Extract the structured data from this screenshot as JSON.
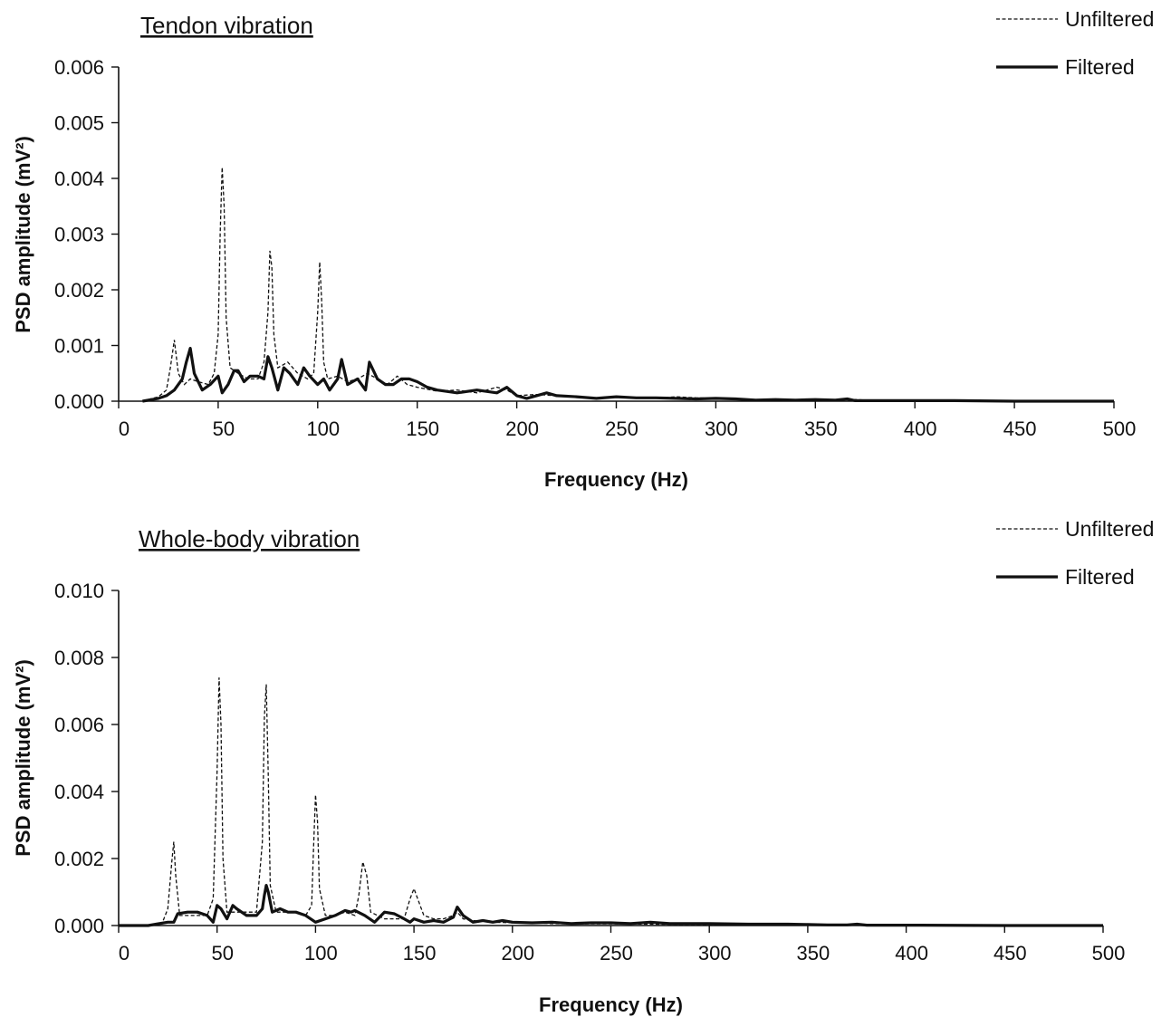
{
  "chart_data": [
    {
      "type": "line",
      "title": "Tendon vibration",
      "xlabel": "Frequency (Hz)",
      "ylabel": "PSD amplitude (mV²)",
      "xlim": [
        0,
        500
      ],
      "ylim": [
        0,
        0.006
      ],
      "x_ticks": [
        "0",
        "50",
        "100",
        "150",
        "200",
        "250",
        "300",
        "350",
        "400",
        "450",
        "500"
      ],
      "y_ticks": [
        "0.000",
        "0.001",
        "0.002",
        "0.003",
        "0.004",
        "0.005",
        "0.006"
      ],
      "grid": false,
      "legend_placement": "top-right",
      "series": [
        {
          "name": "Unfiltered",
          "style": "dashed",
          "x": [
            12,
            20,
            24,
            26,
            28,
            30,
            33,
            36,
            40,
            45,
            48,
            50,
            51,
            52,
            53,
            54,
            56,
            60,
            65,
            70,
            73,
            75,
            76,
            77,
            78,
            80,
            85,
            90,
            95,
            98,
            100,
            101,
            102,
            103,
            105,
            110,
            115,
            120,
            125,
            130,
            135,
            140,
            145,
            150,
            160,
            170,
            180,
            190,
            195,
            200,
            210,
            220,
            230,
            240,
            250,
            260,
            270,
            280,
            290,
            300,
            310,
            320,
            330,
            340,
            350,
            360,
            370,
            380,
            400,
            420,
            450,
            480,
            500
          ],
          "y": [
            0,
            8e-05,
            0.0002,
            0.0006,
            0.0011,
            0.0005,
            0.0003,
            0.0004,
            0.00035,
            0.0003,
            0.0005,
            0.0012,
            0.003,
            0.0042,
            0.0035,
            0.0015,
            0.0006,
            0.0005,
            0.0004,
            0.0004,
            0.0007,
            0.0016,
            0.0027,
            0.0024,
            0.0012,
            0.0006,
            0.0007,
            0.0005,
            0.0004,
            0.0005,
            0.0016,
            0.0025,
            0.0018,
            0.0007,
            0.0004,
            0.00045,
            0.00035,
            0.0004,
            0.0005,
            0.0004,
            0.0003,
            0.00045,
            0.0003,
            0.00025,
            0.00018,
            0.0002,
            0.00015,
            0.00025,
            0.0002,
            0.0001,
            0.00012,
            0.0001,
            8e-05,
            6e-05,
            8e-05,
            7e-05,
            5e-05,
            8e-05,
            6e-05,
            5e-05,
            4e-05,
            3e-05,
            3e-05,
            3e-05,
            2e-05,
            2e-05,
            3e-05,
            1e-05,
            1e-05,
            1e-05,
            1e-05,
            0,
            0
          ]
        },
        {
          "name": "Filtered",
          "style": "solid",
          "x": [
            12,
            20,
            24,
            28,
            32,
            34,
            36,
            38,
            42,
            46,
            50,
            52,
            55,
            58,
            60,
            63,
            66,
            70,
            73,
            75,
            77,
            80,
            83,
            86,
            90,
            93,
            96,
            100,
            103,
            106,
            110,
            112,
            115,
            120,
            124,
            126,
            130,
            134,
            138,
            142,
            146,
            150,
            155,
            160,
            170,
            180,
            190,
            195,
            200,
            205,
            210,
            215,
            220,
            230,
            240,
            250,
            260,
            270,
            280,
            290,
            300,
            310,
            320,
            330,
            340,
            350,
            360,
            366,
            370,
            380,
            400,
            420,
            450,
            480,
            500
          ],
          "y": [
            0,
            5e-05,
            0.0001,
            0.0002,
            0.0004,
            0.0007,
            0.00095,
            0.0005,
            0.0002,
            0.0003,
            0.00045,
            0.00015,
            0.0003,
            0.00055,
            0.00055,
            0.00035,
            0.00045,
            0.00045,
            0.0004,
            0.0008,
            0.0006,
            0.0002,
            0.0006,
            0.0005,
            0.0003,
            0.0006,
            0.00045,
            0.0003,
            0.0004,
            0.0002,
            0.0004,
            0.00075,
            0.0003,
            0.0004,
            0.0002,
            0.0007,
            0.0004,
            0.0003,
            0.0003,
            0.0004,
            0.0004,
            0.00035,
            0.00025,
            0.0002,
            0.00015,
            0.0002,
            0.00015,
            0.00025,
            0.0001,
            5e-05,
            0.0001,
            0.00015,
            0.0001,
            8e-05,
            5e-05,
            8e-05,
            6e-05,
            6e-05,
            5e-05,
            4e-05,
            5e-05,
            4e-05,
            2e-05,
            3e-05,
            2e-05,
            3e-05,
            2e-05,
            4e-05,
            1e-05,
            1e-05,
            1e-05,
            1e-05,
            0,
            0,
            0
          ]
        }
      ]
    },
    {
      "type": "line",
      "title": "Whole-body vibration",
      "xlabel": "Frequency (Hz)",
      "ylabel": "PSD amplitude (mV²)",
      "xlim": [
        0,
        500
      ],
      "ylim": [
        0,
        0.01
      ],
      "x_ticks": [
        "0",
        "50",
        "100",
        "150",
        "200",
        "250",
        "300",
        "350",
        "400",
        "450",
        "500"
      ],
      "y_ticks": [
        "0.000",
        "0.002",
        "0.004",
        "0.006",
        "0.008",
        "0.010"
      ],
      "grid": false,
      "legend_placement": "top-right",
      "series": [
        {
          "name": "Unfiltered",
          "style": "dashed",
          "x": [
            0,
            15,
            22,
            25,
            27,
            28,
            29,
            31,
            35,
            40,
            45,
            48,
            50,
            51,
            52,
            53,
            55,
            60,
            65,
            70,
            73,
            74,
            75,
            76,
            77,
            80,
            85,
            90,
            95,
            98,
            99,
            100,
            101,
            102,
            105,
            110,
            115,
            120,
            122,
            124,
            126,
            128,
            135,
            145,
            148,
            150,
            155,
            160,
            165,
            170,
            172,
            175,
            180,
            190,
            200,
            210,
            220,
            230,
            250,
            270,
            300,
            330,
            350,
            360,
            370,
            380,
            400,
            450,
            500
          ],
          "y": [
            0,
            0,
            5e-05,
            0.0005,
            0.0019,
            0.0025,
            0.0015,
            0.0003,
            0.0003,
            0.0003,
            0.0003,
            0.0008,
            0.0046,
            0.0074,
            0.006,
            0.002,
            0.0004,
            0.0004,
            0.0004,
            0.0004,
            0.0025,
            0.0062,
            0.0072,
            0.0045,
            0.0012,
            0.0004,
            0.0004,
            0.0004,
            0.0003,
            0.0006,
            0.0023,
            0.0039,
            0.0031,
            0.0011,
            0.0003,
            0.0003,
            0.0004,
            0.0003,
            0.0009,
            0.0019,
            0.0015,
            0.0004,
            0.0002,
            0.0002,
            0.0008,
            0.0011,
            0.0003,
            0.0002,
            0.0002,
            0.0003,
            0.0004,
            0.0002,
            0.00015,
            0.0001,
            8e-05,
            8e-05,
            6e-05,
            5e-05,
            5e-05,
            4e-05,
            3e-05,
            2e-05,
            2e-05,
            1e-05,
            1e-05,
            1e-05,
            1e-05,
            0,
            0
          ]
        },
        {
          "name": "Filtered",
          "style": "solid",
          "x": [
            0,
            15,
            20,
            25,
            28,
            30,
            35,
            40,
            45,
            48,
            50,
            52,
            55,
            58,
            60,
            65,
            70,
            73,
            74,
            75,
            76,
            78,
            82,
            86,
            90,
            95,
            100,
            105,
            110,
            115,
            118,
            120,
            125,
            130,
            135,
            140,
            145,
            148,
            150,
            155,
            160,
            165,
            170,
            172,
            175,
            180,
            185,
            190,
            195,
            200,
            210,
            220,
            230,
            240,
            250,
            260,
            270,
            280,
            300,
            320,
            340,
            350,
            360,
            370,
            375,
            380,
            400,
            450,
            500
          ],
          "y": [
            0,
            0,
            5e-05,
            0.0001,
            0.0001,
            0.00035,
            0.0004,
            0.0004,
            0.0003,
            0.0001,
            0.0006,
            0.0005,
            0.0002,
            0.0006,
            0.0005,
            0.0003,
            0.0003,
            0.0005,
            0.0009,
            0.0012,
            0.001,
            0.0004,
            0.0005,
            0.0004,
            0.0004,
            0.0003,
            0.0001,
            0.0002,
            0.0003,
            0.00045,
            0.0004,
            0.00045,
            0.0003,
            0.0001,
            0.0004,
            0.00035,
            0.0002,
            0.0001,
            0.0002,
            0.0001,
            0.00015,
            0.0001,
            0.00025,
            0.00055,
            0.0003,
            0.0001,
            0.00015,
            0.0001,
            0.00015,
            0.0001,
            8e-05,
            0.0001,
            6e-05,
            8e-05,
            8e-05,
            6e-05,
            0.0001,
            6e-05,
            6e-05,
            4e-05,
            4e-05,
            3e-05,
            2e-05,
            2e-05,
            4e-05,
            1e-05,
            1e-05,
            0,
            0
          ]
        }
      ]
    }
  ]
}
